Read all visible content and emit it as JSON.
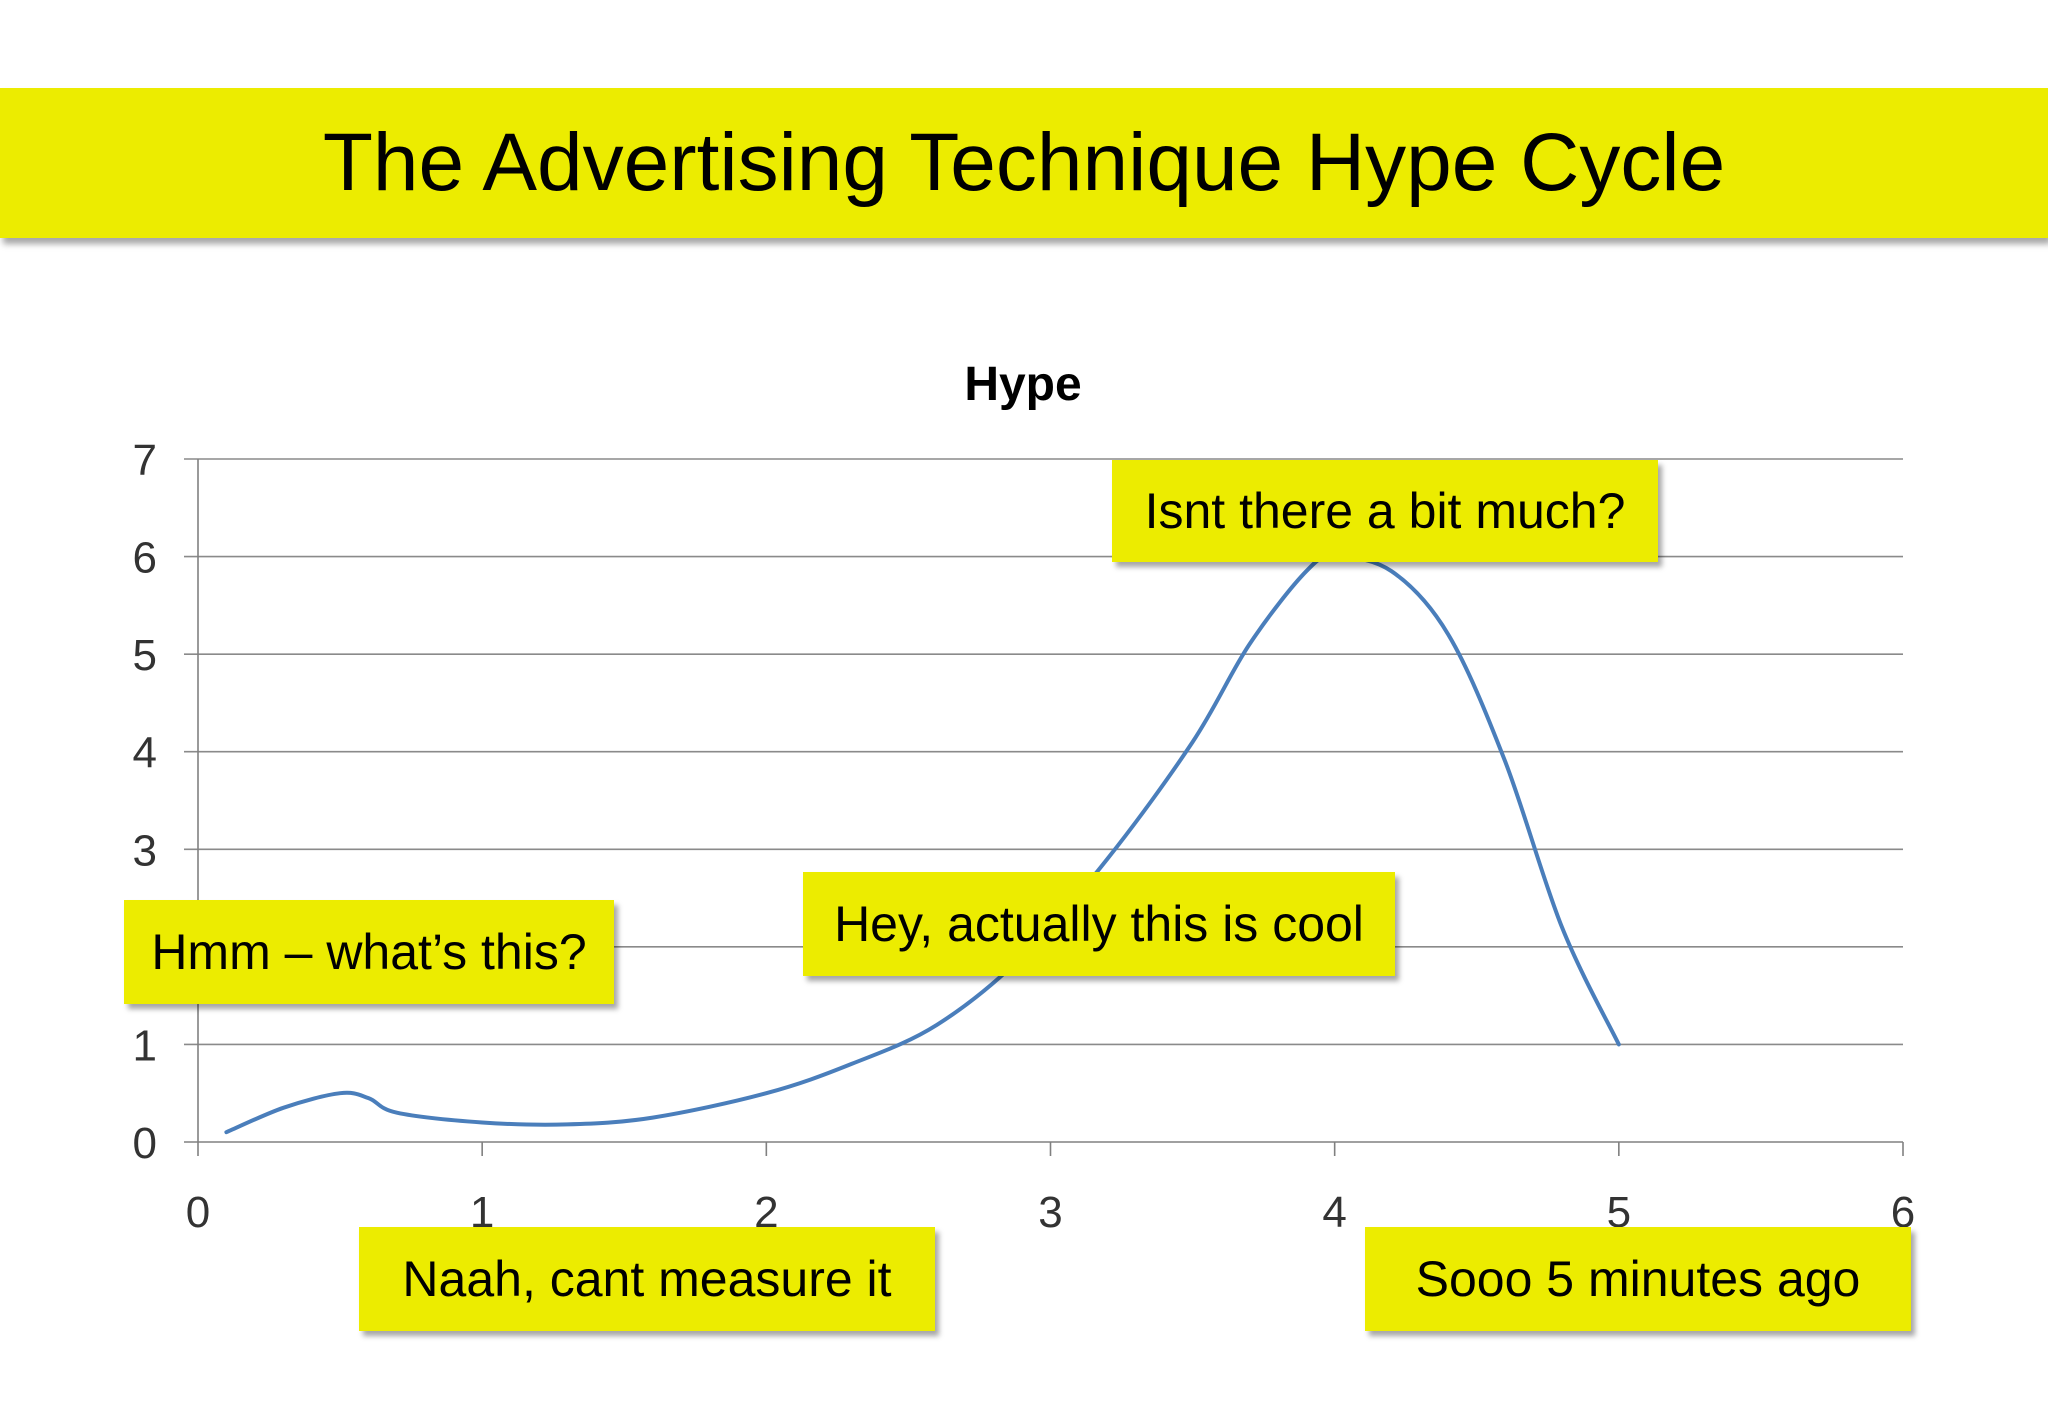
{
  "slide": {
    "title": "The Advertising Technique Hype Cycle"
  },
  "chart_data": {
    "type": "line",
    "title": "Hype",
    "xlabel": "",
    "ylabel": "",
    "xlim": [
      0,
      6
    ],
    "ylim": [
      0,
      7
    ],
    "xticks": [
      "0",
      "1",
      "2",
      "3",
      "4",
      "5",
      "6"
    ],
    "yticks": [
      "0",
      "1",
      "2",
      "3",
      "4",
      "5",
      "6",
      "7"
    ],
    "grid": true,
    "legend": "none",
    "series": [
      {
        "color": "#4a7ebb",
        "x": [
          0.1,
          0.3,
          0.5,
          0.6,
          0.7,
          1.0,
          1.3,
          1.6,
          2.0,
          2.3,
          2.6,
          2.9,
          3.2,
          3.5,
          3.7,
          3.9,
          4.0,
          4.2,
          4.4,
          4.6,
          4.8,
          5.0
        ],
        "y": [
          0.1,
          0.35,
          0.5,
          0.45,
          0.3,
          0.2,
          0.18,
          0.25,
          0.5,
          0.8,
          1.2,
          1.9,
          2.9,
          4.1,
          5.1,
          5.85,
          6.0,
          5.85,
          5.2,
          3.9,
          2.2,
          1.0
        ]
      }
    ]
  },
  "callouts": [
    {
      "id": "c1",
      "text": "Hmm – what’s this?"
    },
    {
      "id": "c2",
      "text": "Naah, cant measure it"
    },
    {
      "id": "c3",
      "text": "Hey, actually this is cool"
    },
    {
      "id": "c4",
      "text": "Isnt there a bit much?"
    },
    {
      "id": "c5",
      "text": "Sooo 5 minutes ago"
    }
  ]
}
